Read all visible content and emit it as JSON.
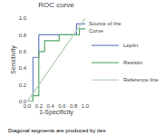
{
  "chart_data": {
    "type": "line",
    "title": "ROC curve",
    "x_label": "1-Specificity",
    "y_label": "Sensitivity",
    "annotations": [
      "Diagonal segments are produced by ties"
    ],
    "legend_title": "Source of the\nCurve",
    "legend": "right",
    "grid": false,
    "series": [
      {
        "name": "Leptin",
        "color": "#6680c0",
        "x": [
          0.0,
          0.1,
          0.1,
          0.2,
          0.2,
          0.2,
          0.85,
          0.85,
          1.0
        ],
        "values": [
          0.0,
          0.0,
          0.53,
          0.53,
          0.8,
          0.8,
          0.8,
          0.93,
          0.93
        ]
      },
      {
        "name": "Resistin",
        "color": "#5aaa6a",
        "x": [
          0.0,
          0.1,
          0.1,
          0.2,
          0.2,
          0.3,
          0.3,
          0.55,
          0.55,
          0.9,
          0.9,
          1.0
        ],
        "values": [
          0.0,
          0.0,
          0.07,
          0.07,
          0.6,
          0.6,
          0.73,
          0.73,
          0.8,
          0.8,
          0.87,
          0.87
        ]
      },
      {
        "name": "Reference line",
        "color": "#b0d0b0",
        "x": [
          0.0,
          1.0
        ],
        "values": [
          0.0,
          1.0
        ]
      }
    ],
    "xlim": [
      0.0,
      1.0
    ],
    "ylim": [
      0.0,
      1.0
    ],
    "xticks": [
      {
        "value": 0.0,
        "label": "0.0"
      },
      0.2,
      0.4,
      0.6,
      0.8,
      {
        "value": 1.0,
        "label": "1.0"
      }
    ],
    "yticks": [
      {
        "value": 0.0,
        "label": "0.0"
      },
      0.2,
      0.4,
      0.6,
      0.8,
      {
        "value": 1.0,
        "label": "1.0"
      }
    ]
  }
}
